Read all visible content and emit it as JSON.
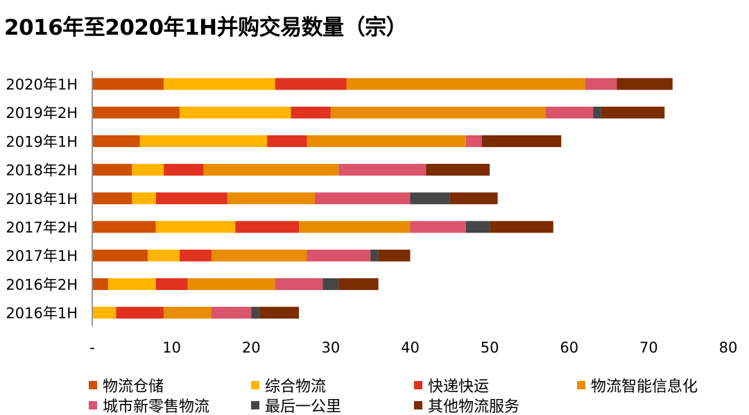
{
  "chart_data": {
    "type": "bar",
    "orientation": "horizontal",
    "stacked": true,
    "title": "2016年至2020年1H并购交易数量（宗）",
    "xlabel": "",
    "ylabel": "",
    "xlim": [
      0,
      80
    ],
    "xticks": [
      "-",
      "10",
      "20",
      "30",
      "40",
      "50",
      "60",
      "70",
      "80"
    ],
    "xtick_values": [
      0,
      10,
      20,
      30,
      40,
      50,
      60,
      70,
      80
    ],
    "grid": false,
    "legend_position": "bottom",
    "categories": [
      "2020年1H",
      "2019年2H",
      "2019年1H",
      "2018年2H",
      "2018年1H",
      "2017年2H",
      "2017年1H",
      "2016年2H",
      "2016年1H"
    ],
    "series": [
      {
        "name": "物流仓储",
        "color": "#CF4F03",
        "values": [
          9,
          11,
          6,
          5,
          5,
          8,
          7,
          2,
          0
        ]
      },
      {
        "name": "综合物流",
        "color": "#FFB400",
        "values": [
          14,
          14,
          16,
          4,
          3,
          10,
          4,
          6,
          3
        ]
      },
      {
        "name": "快递快运",
        "color": "#E0321F",
        "values": [
          9,
          5,
          5,
          5,
          9,
          8,
          4,
          4,
          6
        ]
      },
      {
        "name": "物流智能信息化",
        "color": "#EA8C00",
        "values": [
          30,
          27,
          20,
          17,
          11,
          14,
          12,
          11,
          6
        ]
      },
      {
        "name": "城市新零售物流",
        "color": "#DA546C",
        "values": [
          4,
          6,
          2,
          11,
          12,
          7,
          8,
          6,
          5
        ]
      },
      {
        "name": "最后一公里",
        "color": "#464646",
        "values": [
          0,
          1,
          0,
          0,
          5,
          3,
          1,
          2,
          1
        ]
      },
      {
        "name": "其他物流服务",
        "color": "#7B2C00",
        "values": [
          7,
          8,
          10,
          8,
          6,
          8,
          4,
          5,
          5
        ]
      }
    ]
  }
}
